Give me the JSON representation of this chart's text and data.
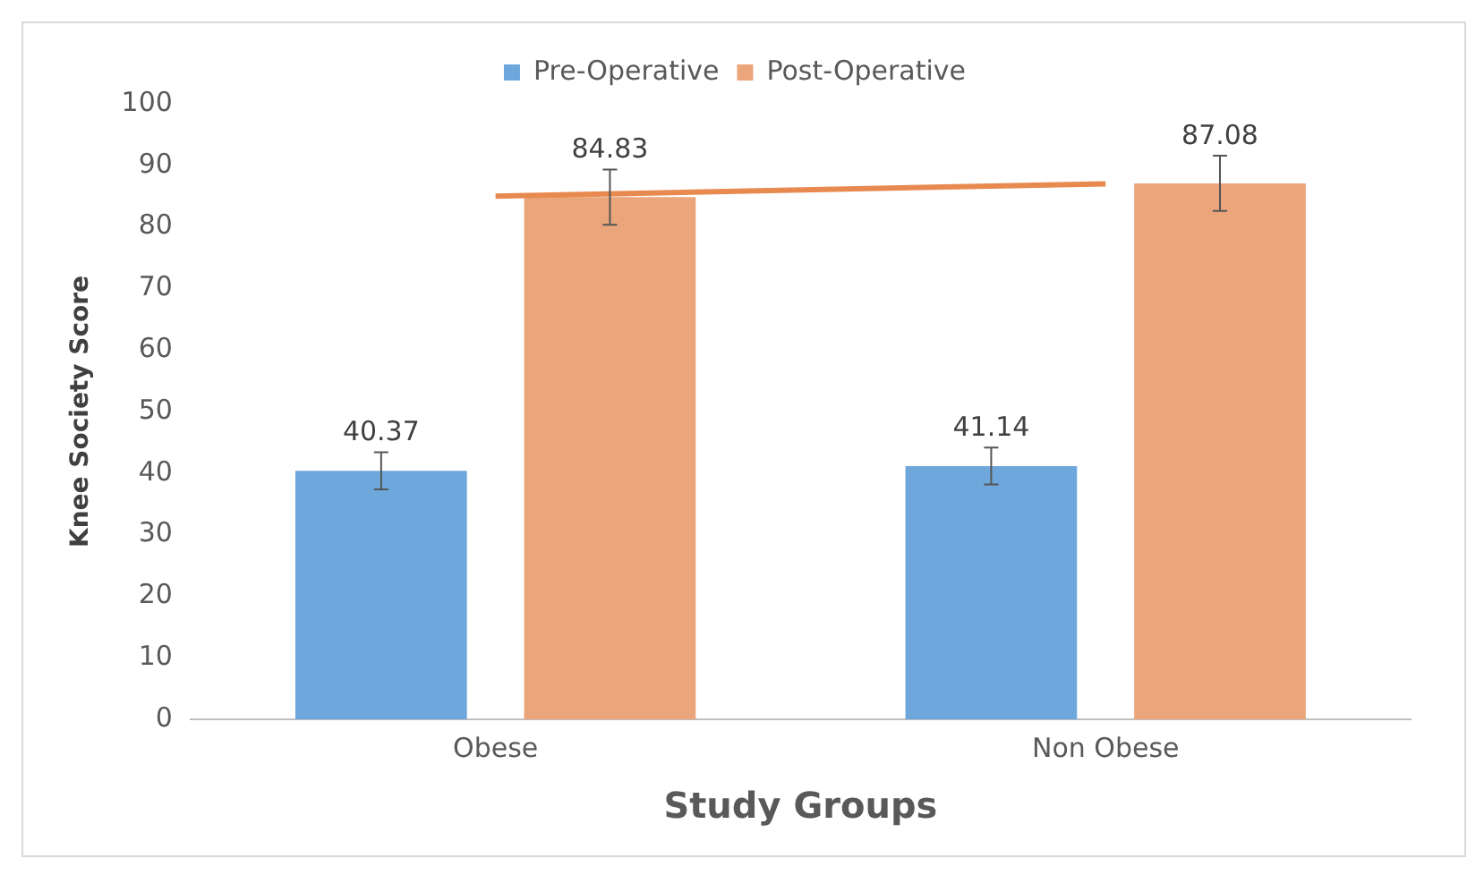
{
  "chart_data": {
    "type": "bar",
    "xlabel": "Study Groups",
    "ylabel": "Knee Society Score",
    "categories": [
      "Obese",
      "Non Obese"
    ],
    "series": [
      {
        "name": "Pre-Operative",
        "color": "#6ea7dc",
        "values": [
          40.37,
          41.14
        ],
        "errors": [
          3,
          3
        ],
        "value_labels": [
          "40.37",
          "41.14"
        ]
      },
      {
        "name": "Post-Operative",
        "color": "#eaa57a",
        "values": [
          84.83,
          87.08
        ],
        "errors": [
          4.5,
          4.5
        ],
        "value_labels": [
          "84.83",
          "87.08"
        ]
      },
      {
        "type": "line",
        "color": "#e8894f",
        "values": [
          85,
          87
        ]
      }
    ],
    "ylim": [
      0,
      100
    ],
    "yticks": [
      0,
      10,
      20,
      30,
      40,
      50,
      60,
      70,
      80,
      90,
      100
    ],
    "grid": false,
    "legend": "top"
  }
}
